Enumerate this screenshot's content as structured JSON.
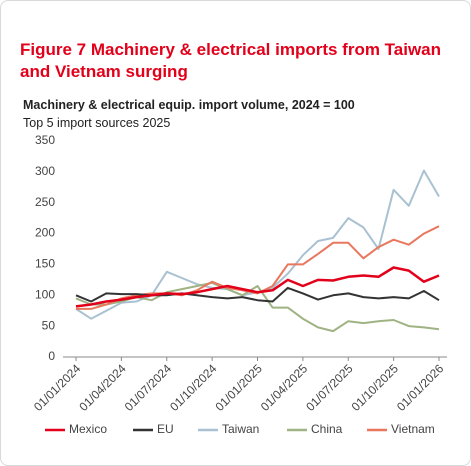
{
  "chart_data": {
    "type": "line",
    "title": "Figure 7 Machinery & electrical imports from Taiwan and Vietnam surging",
    "subtitle": "Machinery & electrical equip. import volume, 2024 = 100",
    "subtitle2": "Top 5 import sources 2025",
    "x": [
      "01/01/2024",
      null,
      null,
      "01/04/2024",
      null,
      null,
      "01/07/2024",
      null,
      null,
      "01/10/2024",
      null,
      null,
      "01/01/2025",
      null,
      null,
      "01/04/2025",
      null,
      null,
      "01/07/2025",
      null,
      null,
      "01/10/2025",
      null,
      null,
      "01/01/2026"
    ],
    "ylim": [
      0,
      350
    ],
    "yticks": [
      0,
      50,
      100,
      150,
      200,
      250,
      300,
      350
    ],
    "legend": "bottom",
    "series": [
      {
        "name": "Mexico",
        "color": "#e2001a",
        "values": [
          82,
          85,
          90,
          93,
          97,
          100,
          103,
          102,
          105,
          110,
          115,
          110,
          105,
          108,
          125,
          115,
          125,
          124,
          130,
          132,
          130,
          145,
          140,
          122,
          132
        ]
      },
      {
        "name": "EU",
        "color": "#333333",
        "values": [
          100,
          90,
          103,
          102,
          102,
          100,
          100,
          103,
          100,
          97,
          95,
          97,
          92,
          90,
          112,
          103,
          93,
          100,
          103,
          97,
          95,
          97,
          95,
          107,
          92
        ]
      },
      {
        "name": "Taiwan",
        "color": "#a9c1d1",
        "values": [
          78,
          62,
          75,
          88,
          90,
          100,
          138,
          128,
          118,
          112,
          110,
          100,
          105,
          112,
          135,
          165,
          188,
          193,
          225,
          210,
          175,
          271,
          245,
          302,
          260
        ]
      },
      {
        "name": "China",
        "color": "#9fb383",
        "values": [
          95,
          85,
          85,
          90,
          97,
          92,
          105,
          110,
          115,
          120,
          110,
          100,
          115,
          80,
          80,
          62,
          48,
          42,
          58,
          55,
          58,
          60,
          50,
          48,
          45
        ]
      },
      {
        "name": "Vietnam",
        "color": "#e9775e",
        "values": [
          78,
          78,
          85,
          95,
          100,
          103,
          103,
          100,
          108,
          122,
          112,
          108,
          103,
          115,
          150,
          150,
          167,
          185,
          185,
          160,
          178,
          190,
          182,
          200,
          212
        ]
      }
    ]
  }
}
